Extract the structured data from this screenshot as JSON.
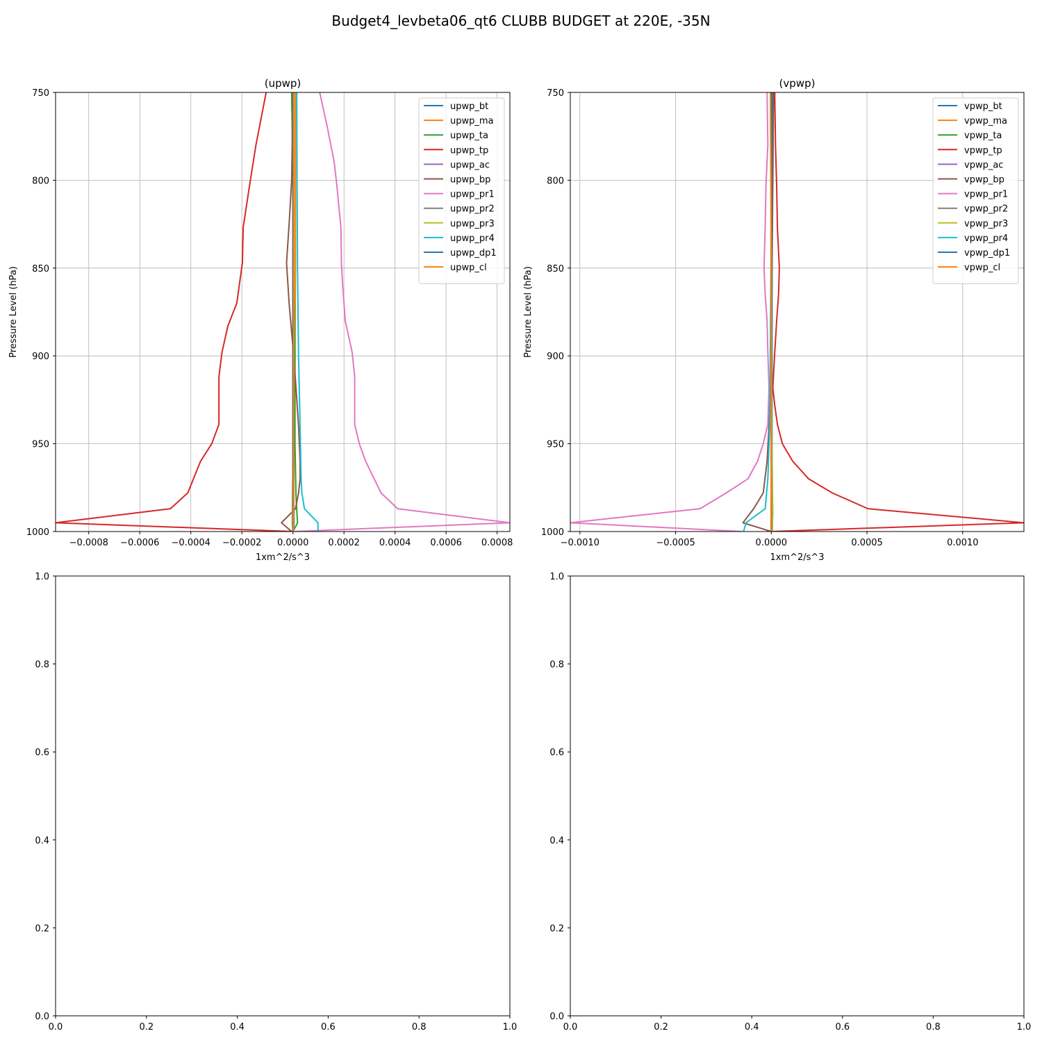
{
  "figure": {
    "title": "Budget4_levbeta06_qt6 CLUBB BUDGET at 220E, -35N"
  },
  "colors": {
    "bt": "#1f77b4",
    "ma": "#ff7f0e",
    "ta": "#2ca02c",
    "tp": "#d62728",
    "ac": "#9467bd",
    "bp": "#8c564b",
    "pr1": "#e377c2",
    "pr2": "#7f7f7f",
    "pr3": "#bcbd22",
    "pr4": "#17becf",
    "dp1": "#1f77b4",
    "cl": "#ff7f0e"
  },
  "chart_data": [
    {
      "type": "line",
      "title": "(upwp)",
      "xlabel": "1xm^2/s^3",
      "ylabel": "Pressure Level (hPa)",
      "xlim": [
        -0.00093,
        0.00085
      ],
      "ylim": [
        1000,
        750
      ],
      "xticks": [
        -0.0008,
        -0.0006,
        -0.0004,
        -0.0002,
        0.0,
        0.0002,
        0.0004,
        0.0006,
        0.0008
      ],
      "xtick_labels": [
        "−0.0008",
        "−0.0006",
        "−0.0004",
        "−0.0002",
        "0.0000",
        "0.0002",
        "0.0004",
        "0.0006",
        "0.0008"
      ],
      "yticks": [
        750,
        800,
        850,
        900,
        950,
        1000
      ],
      "ytick_labels": [
        "750",
        "800",
        "850",
        "900",
        "950",
        "1000"
      ],
      "grid": true,
      "legend": "top-right",
      "series": [
        {
          "name": "upwp_bt",
          "key": "bt",
          "values": [
            [
              1e-05,
              750
            ],
            [
              8e-06,
              800
            ],
            [
              8e-06,
              850
            ],
            [
              6e-06,
              900
            ],
            [
              4e-06,
              950
            ],
            [
              3e-06,
              980
            ],
            [
              4e-06,
              995
            ],
            [
              2e-06,
              1000
            ]
          ]
        },
        {
          "name": "upwp_ma",
          "key": "ma",
          "values": [
            [
              1e-05,
              750
            ],
            [
              1e-05,
              800
            ],
            [
              1e-05,
              850
            ],
            [
              8e-06,
              900
            ],
            [
              5e-06,
              950
            ],
            [
              3e-06,
              980
            ],
            [
              2e-06,
              995
            ],
            [
              0.0,
              1000
            ]
          ]
        },
        {
          "name": "upwp_ta",
          "key": "ta",
          "values": [
            [
              -5e-06,
              750
            ],
            [
              0.0,
              800
            ],
            [
              4e-06,
              850
            ],
            [
              8e-06,
              900
            ],
            [
              8e-06,
              950
            ],
            [
              1.2e-05,
              980
            ],
            [
              1.8e-05,
              995
            ],
            [
              0.0,
              1000
            ]
          ]
        },
        {
          "name": "upwp_tp",
          "key": "tp",
          "values": [
            [
              -0.000105,
              750
            ],
            [
              -0.000145,
              780
            ],
            [
              -0.00017,
              803
            ],
            [
              -0.000195,
              827
            ],
            [
              -0.000198,
              847
            ],
            [
              -0.00022,
              870
            ],
            [
              -0.000255,
              883
            ],
            [
              -0.000278,
              898
            ],
            [
              -0.00029,
              912
            ],
            [
              -0.00029,
              939
            ],
            [
              -0.000318,
              950
            ],
            [
              -0.000362,
              960
            ],
            [
              -0.000412,
              978
            ],
            [
              -0.00048,
              987
            ],
            [
              -0.00093,
              995
            ],
            [
              0.0,
              1000
            ]
          ]
        },
        {
          "name": "upwp_ac",
          "key": "ac",
          "values": [
            [
              0.0,
              750
            ],
            [
              0.0,
              850
            ],
            [
              0.0,
              950
            ],
            [
              0.0,
              1000
            ]
          ]
        },
        {
          "name": "upwp_bp",
          "key": "bp",
          "values": [
            [
              0.0,
              750
            ],
            [
              -5e-06,
              800
            ],
            [
              -1.5e-05,
              825
            ],
            [
              -2.5e-05,
              847
            ],
            [
              -1.5e-05,
              870
            ],
            [
              0.0,
              895
            ],
            [
              1.2e-05,
              918
            ],
            [
              2.2e-05,
              940
            ],
            [
              2.8e-05,
              960
            ],
            [
              2.8e-05,
              970
            ],
            [
              2.2e-05,
              978
            ],
            [
              1e-05,
              987
            ],
            [
              -4.5e-05,
              995
            ],
            [
              -5e-06,
              1000
            ]
          ]
        },
        {
          "name": "upwp_pr1",
          "key": "pr1",
          "values": [
            [
              0.000105,
              750
            ],
            [
              0.000135,
              770
            ],
            [
              0.000162,
              790
            ],
            [
              0.000172,
              803
            ],
            [
              0.000188,
              827
            ],
            [
              0.00019,
              847
            ],
            [
              0.000195,
              860
            ],
            [
              0.000205,
              880
            ],
            [
              0.000232,
              898
            ],
            [
              0.000242,
              912
            ],
            [
              0.000242,
              939
            ],
            [
              0.00026,
              950
            ],
            [
              0.000285,
              960
            ],
            [
              0.000345,
              978
            ],
            [
              0.00041,
              987
            ],
            [
              0.00085,
              995
            ],
            [
              5e-06,
              1000
            ]
          ]
        },
        {
          "name": "upwp_pr2",
          "key": "pr2",
          "values": [
            [
              0.0,
              750
            ],
            [
              0.0,
              850
            ],
            [
              0.0,
              950
            ],
            [
              0.0,
              990
            ],
            [
              0.0,
              1000
            ]
          ]
        },
        {
          "name": "upwp_pr3",
          "key": "pr3",
          "values": [
            [
              5e-06,
              750
            ],
            [
              5e-06,
              850
            ],
            [
              2e-06,
              950
            ],
            [
              -2e-06,
              980
            ],
            [
              -3e-06,
              995
            ],
            [
              0.0,
              1000
            ]
          ]
        },
        {
          "name": "upwp_pr4",
          "key": "pr4",
          "values": [
            [
              1.5e-05,
              750
            ],
            [
              1.6e-05,
              800
            ],
            [
              1.8e-05,
              850
            ],
            [
              2.2e-05,
              900
            ],
            [
              2.8e-05,
              940
            ],
            [
              3.2e-05,
              970
            ],
            [
              3.5e-05,
              978
            ],
            [
              4.5e-05,
              987
            ],
            [
              9.8e-05,
              995
            ],
            [
              9.8e-05,
              1000
            ]
          ]
        },
        {
          "name": "upwp_dp1",
          "key": "dp1",
          "values": [
            [
              0.0,
              750
            ],
            [
              0.0,
              900
            ],
            [
              0.0,
              1000
            ]
          ]
        },
        {
          "name": "upwp_cl",
          "key": "cl",
          "values": [
            [
              3e-06,
              750
            ],
            [
              3e-06,
              900
            ],
            [
              2e-06,
              1000
            ]
          ]
        }
      ]
    },
    {
      "type": "line",
      "title": "(vpwp)",
      "xlabel": "1xm^2/s^3",
      "ylabel": "Pressure Level (hPa)",
      "xlim": [
        -0.00105,
        0.00132
      ],
      "ylim": [
        1000,
        750
      ],
      "xticks": [
        -0.001,
        -0.0005,
        0.0,
        0.0005,
        0.001
      ],
      "xtick_labels": [
        "−0.0010",
        "−0.0005",
        "0.0000",
        "0.0005",
        "0.0010"
      ],
      "yticks": [
        750,
        800,
        850,
        900,
        950,
        1000
      ],
      "ytick_labels": [
        "750",
        "800",
        "850",
        "900",
        "950",
        "1000"
      ],
      "grid": true,
      "legend": "top-right",
      "series": [
        {
          "name": "vpwp_bt",
          "key": "bt",
          "values": [
            [
              5e-06,
              750
            ],
            [
              4e-06,
              850
            ],
            [
              4e-06,
              950
            ],
            [
              6e-06,
              995
            ],
            [
              5e-06,
              1000
            ]
          ]
        },
        {
          "name": "vpwp_ma",
          "key": "ma",
          "values": [
            [
              0.0,
              750
            ],
            [
              0.0,
              850
            ],
            [
              0.0,
              950
            ],
            [
              0.0,
              1000
            ]
          ]
        },
        {
          "name": "vpwp_ta",
          "key": "ta",
          "values": [
            [
              2e-06,
              750
            ],
            [
              2e-06,
              850
            ],
            [
              2e-06,
              950
            ],
            [
              3e-06,
              995
            ],
            [
              0.0,
              1000
            ]
          ]
        },
        {
          "name": "vpwp_tp",
          "key": "tp",
          "values": [
            [
              1.8e-05,
              750
            ],
            [
              2.2e-05,
              780
            ],
            [
              2.8e-05,
              803
            ],
            [
              3.2e-05,
              827
            ],
            [
              4.2e-05,
              850
            ],
            [
              3.8e-05,
              865
            ],
            [
              2.8e-05,
              880
            ],
            [
              1.8e-05,
              898
            ],
            [
              8e-06,
              918
            ],
            [
              1.8e-05,
              928
            ],
            [
              3.2e-05,
              939
            ],
            [
              5.8e-05,
              950
            ],
            [
              0.000112,
              960
            ],
            [
              0.000195,
              970
            ],
            [
              0.000318,
              978
            ],
            [
              0.000505,
              987
            ],
            [
              0.00132,
              995
            ],
            [
              0.0,
              1000
            ]
          ]
        },
        {
          "name": "vpwp_ac",
          "key": "ac",
          "values": [
            [
              0.0,
              750
            ],
            [
              0.0,
              900
            ],
            [
              0.0,
              1000
            ]
          ]
        },
        {
          "name": "vpwp_bp",
          "key": "bp",
          "values": [
            [
              1.2e-05,
              750
            ],
            [
              8e-06,
              800
            ],
            [
              4e-06,
              850
            ],
            [
              0.0,
              900
            ],
            [
              -1.2e-05,
              940
            ],
            [
              -2.2e-05,
              960
            ],
            [
              -4.2e-05,
              978
            ],
            [
              -9.2e-05,
              987
            ],
            [
              -0.000148,
              995
            ],
            [
              0.0,
              1000
            ]
          ]
        },
        {
          "name": "vpwp_pr1",
          "key": "pr1",
          "values": [
            [
              -2.2e-05,
              750
            ],
            [
              -1.8e-05,
              780
            ],
            [
              -2.8e-05,
              803
            ],
            [
              -3.2e-05,
              827
            ],
            [
              -3.8e-05,
              850
            ],
            [
              -3.2e-05,
              865
            ],
            [
              -2.2e-05,
              880
            ],
            [
              -1.8e-05,
              898
            ],
            [
              -1.2e-05,
              918
            ],
            [
              -1.8e-05,
              939
            ],
            [
              -4.2e-05,
              950
            ],
            [
              -7.2e-05,
              960
            ],
            [
              -0.000122,
              970
            ],
            [
              -0.000235,
              978
            ],
            [
              -0.000372,
              987
            ],
            [
              -0.00105,
              995
            ],
            [
              -0.000152,
              1000
            ]
          ]
        },
        {
          "name": "vpwp_pr2",
          "key": "pr2",
          "values": [
            [
              0.0,
              750
            ],
            [
              0.0,
              850
            ],
            [
              0.0,
              950
            ],
            [
              0.0,
              1000
            ]
          ]
        },
        {
          "name": "vpwp_pr3",
          "key": "pr3",
          "values": [
            [
              -3e-06,
              750
            ],
            [
              0.0,
              850
            ],
            [
              3e-06,
              950
            ],
            [
              8e-06,
              990
            ],
            [
              4e-06,
              1000
            ]
          ]
        },
        {
          "name": "vpwp_pr4",
          "key": "pr4",
          "values": [
            [
              0.0,
              750
            ],
            [
              -2e-06,
              850
            ],
            [
              -8e-06,
              940
            ],
            [
              -1.8e-05,
              970
            ],
            [
              -3.2e-05,
              987
            ],
            [
              -0.000132,
              995
            ],
            [
              -0.000145,
              1000
            ]
          ]
        },
        {
          "name": "vpwp_dp1",
          "key": "dp1",
          "values": [
            [
              0.0,
              750
            ],
            [
              0.0,
              900
            ],
            [
              0.0,
              1000
            ]
          ]
        },
        {
          "name": "vpwp_cl",
          "key": "cl",
          "values": [
            [
              -5e-06,
              750
            ],
            [
              0.0,
              850
            ],
            [
              0.0,
              950
            ],
            [
              -2e-06,
              1000
            ]
          ]
        }
      ]
    },
    {
      "type": "line",
      "title": "",
      "xlim": [
        0,
        1
      ],
      "ylim": [
        0,
        1
      ],
      "xticks": [
        0.0,
        0.2,
        0.4,
        0.6,
        0.8,
        1.0
      ],
      "xtick_labels": [
        "0.0",
        "0.2",
        "0.4",
        "0.6",
        "0.8",
        "1.0"
      ],
      "yticks": [
        0.0,
        0.2,
        0.4,
        0.6,
        0.8,
        1.0
      ],
      "ytick_labels": [
        "0.0",
        "0.2",
        "0.4",
        "0.6",
        "0.8",
        "1.0"
      ],
      "grid": false,
      "series": []
    },
    {
      "type": "line",
      "title": "",
      "xlim": [
        0,
        1
      ],
      "ylim": [
        0,
        1
      ],
      "xticks": [
        0.0,
        0.2,
        0.4,
        0.6,
        0.8,
        1.0
      ],
      "xtick_labels": [
        "0.0",
        "0.2",
        "0.4",
        "0.6",
        "0.8",
        "1.0"
      ],
      "yticks": [
        0.0,
        0.2,
        0.4,
        0.6,
        0.8,
        1.0
      ],
      "ytick_labels": [
        "0.0",
        "0.2",
        "0.4",
        "0.6",
        "0.8",
        "1.0"
      ],
      "grid": false,
      "series": []
    }
  ]
}
